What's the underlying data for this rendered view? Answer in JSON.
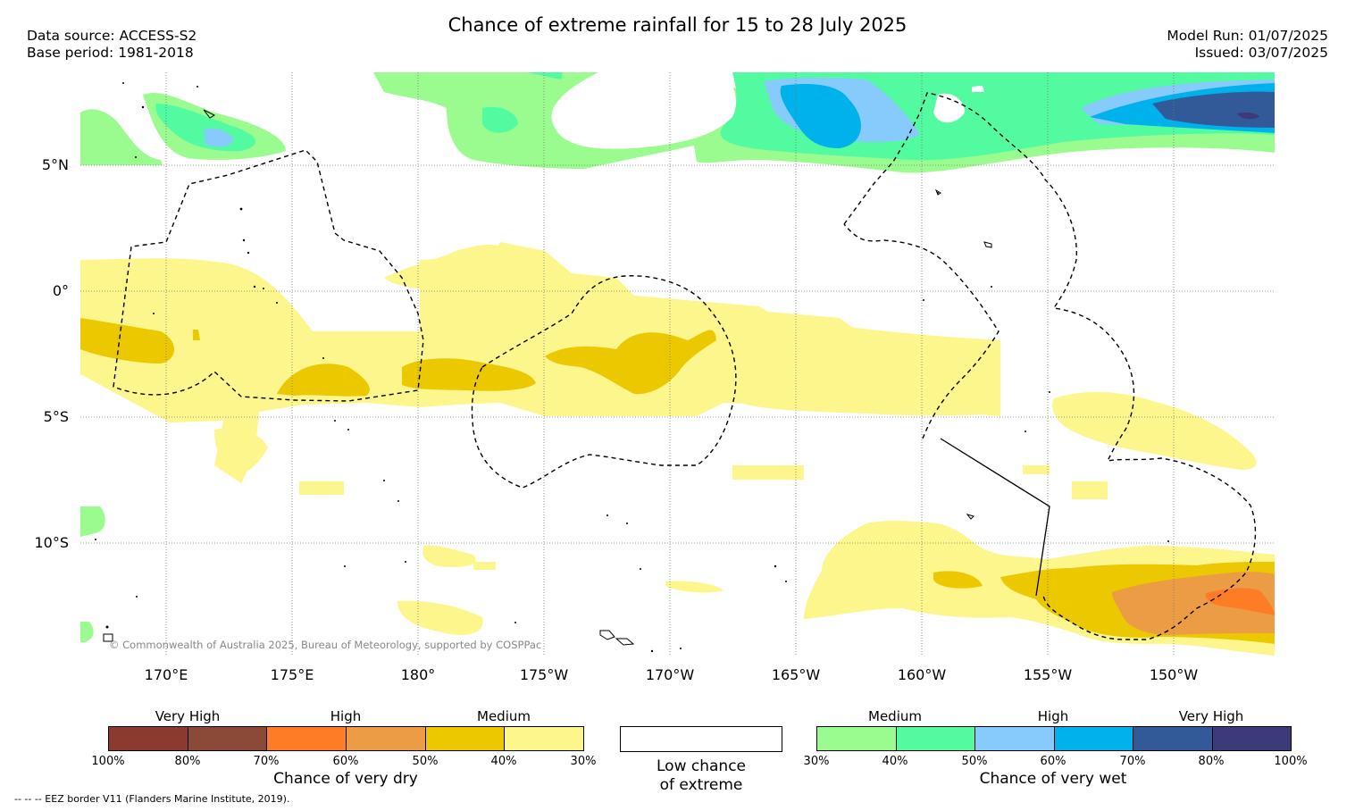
{
  "header": {
    "title": "Chance of extreme rainfall for 15 to 28 July 2025",
    "data_source": "Data source: ACCESS-S2",
    "base_period": "Base period: 1981-2018",
    "model_run": "Model Run: 01/07/2025",
    "issued": "Issued: 03/07/2025"
  },
  "map": {
    "lat_labels": [
      "5°N",
      "0°",
      "5°S",
      "10°S"
    ],
    "lon_labels": [
      "170°E",
      "175°E",
      "180°",
      "175°W",
      "170°W",
      "165°W",
      "160°W",
      "155°W",
      "150°W"
    ],
    "copyright": "© Commonwealth of Australia 2025, Bureau of Meteorology, supported by COSPPac"
  },
  "colors": {
    "dry_100_90": "#8b3a30",
    "dry_90_80": "#8b4a38",
    "dry_70_60": "#ff7c26",
    "dry_60_50": "#eb9c44",
    "dry_50_40": "#ebc800",
    "dry_40_30": "#fcf68c",
    "wet_30_40": "#9afb8e",
    "wet_40_50": "#52fba0",
    "wet_50_60": "#87cafc",
    "wet_60_70": "#00b2ec",
    "wet_70_80": "#335a98",
    "wet_80_100": "#3c3a78"
  },
  "legend": {
    "dry": {
      "categories": [
        "Very High",
        "High",
        "Medium"
      ],
      "ticks": [
        "100%",
        "80%",
        "70%",
        "60%",
        "50%",
        "40%",
        "30%"
      ],
      "title": "Chance of very dry"
    },
    "low": {
      "line1": "Low chance",
      "line2": "of extreme"
    },
    "wet": {
      "categories": [
        "Medium",
        "High",
        "Very High"
      ],
      "ticks": [
        "30%",
        "40%",
        "50%",
        "60%",
        "70%",
        "80%",
        "100%"
      ],
      "title": "Chance of very wet"
    }
  },
  "footnote": "-- -- -- EEZ border V11 (Flanders Marine Institute, 2019)."
}
